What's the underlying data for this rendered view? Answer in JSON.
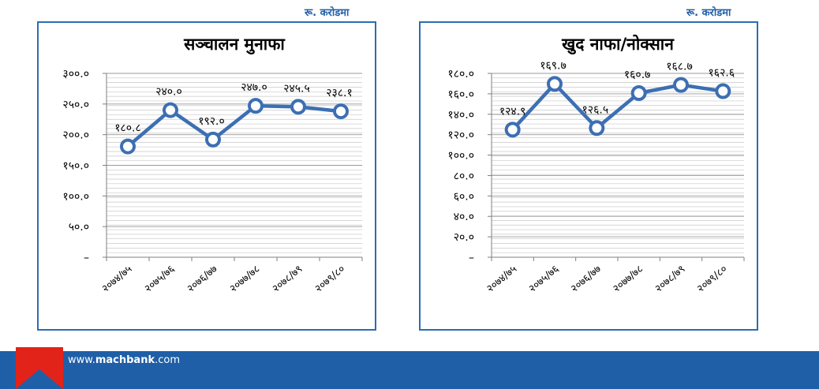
{
  "chart_data": [
    {
      "type": "line",
      "title": "सञ्चालन मुनाफा",
      "unit_label": "रू. करोडमा",
      "categories": [
        "२०७४/७५",
        "२०७५/७६",
        "२०७६/७७",
        "२०७७/७८",
        "२०७८/७९",
        "२०७९/८०"
      ],
      "values": [
        180.8,
        240.0,
        192.0,
        247.0,
        245.5,
        238.1
      ],
      "data_labels": [
        "१८०.८",
        "२४०.०",
        "१९२.०",
        "२४७.०",
        "२४५.५",
        "२३८.१"
      ],
      "ylim": [
        0,
        300
      ],
      "yticks": [
        0,
        50,
        100,
        150,
        200,
        250,
        300
      ],
      "ytick_labels": [
        "–",
        "५०.०",
        "१००.०",
        "१५०.०",
        "२००.०",
        "२५०.०",
        "३००.०"
      ],
      "grid": true,
      "line_color": "#3c6fb3"
    },
    {
      "type": "line",
      "title": "खुद नाफा/नोक्सान",
      "unit_label": "रू. करोडमा",
      "categories": [
        "२०७४/७५",
        "२०७५/७६",
        "२०७६/७७",
        "२०७७/७८",
        "२०७८/७९",
        "२०७९/८०"
      ],
      "values": [
        124.9,
        169.7,
        126.5,
        160.7,
        168.7,
        162.6
      ],
      "data_labels": [
        "१२४.९",
        "१६९.७",
        "१२६.५",
        "१६०.७",
        "१६८.७",
        "१६२.६"
      ],
      "ylim": [
        0,
        180
      ],
      "yticks": [
        0,
        20,
        40,
        60,
        80,
        100,
        120,
        140,
        160,
        180
      ],
      "ytick_labels": [
        "–",
        "२०.०",
        "४०.०",
        "६०.०",
        "८०.०",
        "१००.०",
        "१२०.०",
        "१४०.०",
        "१६०.०",
        "१८०.०"
      ],
      "grid": true,
      "line_color": "#3c6fb3"
    }
  ],
  "footer": {
    "site_prefix": "www.",
    "site_brand": "machbank",
    "site_suffix": ".com",
    "bar_color": "#1f5fa8",
    "logo_color": "#e2231a"
  }
}
